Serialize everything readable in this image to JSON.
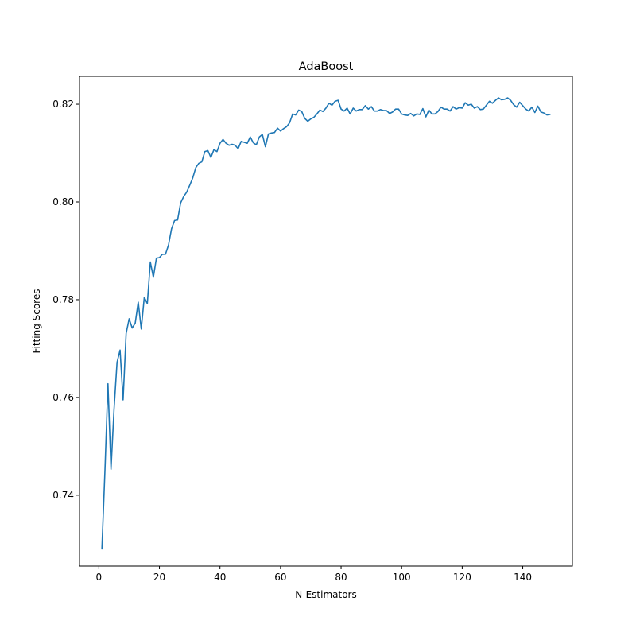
{
  "chart_data": {
    "type": "line",
    "title": "AdaBoost",
    "xlabel": "N-Estimators",
    "ylabel": "Fitting Scores",
    "xlim": [
      -6.4,
      156.4
    ],
    "ylim": [
      0.7255,
      0.8257
    ],
    "xticks": [
      0,
      20,
      40,
      60,
      80,
      100,
      120,
      140
    ],
    "xtick_labels": [
      "0",
      "20",
      "40",
      "60",
      "80",
      "100",
      "120",
      "140"
    ],
    "yticks": [
      0.74,
      0.76,
      0.78,
      0.8,
      0.82
    ],
    "ytick_labels": [
      "0.74",
      "0.76",
      "0.78",
      "0.80",
      "0.82"
    ],
    "grid": false,
    "legend": "none",
    "series": [
      {
        "color": "#1f77b4",
        "x": [
          1,
          2,
          3,
          4,
          5,
          6,
          7,
          8,
          9,
          10,
          11,
          12,
          13,
          14,
          15,
          16,
          17,
          18,
          19,
          20,
          21,
          22,
          23,
          24,
          25,
          26,
          27,
          28,
          29,
          30,
          31,
          32,
          33,
          34,
          35,
          36,
          37,
          38,
          39,
          40,
          41,
          42,
          43,
          44,
          45,
          46,
          47,
          48,
          49,
          50,
          51,
          52,
          53,
          54,
          55,
          56,
          57,
          58,
          59,
          60,
          61,
          62,
          63,
          64,
          65,
          66,
          67,
          68,
          69,
          70,
          71,
          72,
          73,
          74,
          75,
          76,
          77,
          78,
          79,
          80,
          81,
          82,
          83,
          84,
          85,
          86,
          87,
          88,
          89,
          90,
          91,
          92,
          93,
          94,
          95,
          96,
          97,
          98,
          99,
          100,
          101,
          102,
          103,
          104,
          105,
          106,
          107,
          108,
          109,
          110,
          111,
          112,
          113,
          114,
          115,
          116,
          117,
          118,
          119,
          120,
          121,
          122,
          123,
          124,
          125,
          126,
          127,
          128,
          129,
          130,
          131,
          132,
          133,
          134,
          135,
          136,
          137,
          138,
          139,
          140,
          141,
          142,
          143,
          144,
          145,
          146,
          147,
          148,
          149
        ],
        "y": [
          0.729,
          0.745,
          0.7628,
          0.7453,
          0.7575,
          0.7672,
          0.7697,
          0.7595,
          0.7731,
          0.7761,
          0.7742,
          0.7752,
          0.7795,
          0.774,
          0.7805,
          0.7792,
          0.7877,
          0.7846,
          0.7885,
          0.7886,
          0.7893,
          0.7893,
          0.7912,
          0.7945,
          0.7962,
          0.7963,
          0.7998,
          0.8011,
          0.802,
          0.8034,
          0.8049,
          0.807,
          0.8079,
          0.8082,
          0.8103,
          0.8105,
          0.8091,
          0.8107,
          0.8103,
          0.812,
          0.8128,
          0.812,
          0.8116,
          0.8118,
          0.8116,
          0.8109,
          0.8124,
          0.8122,
          0.812,
          0.8133,
          0.8121,
          0.8117,
          0.8133,
          0.8138,
          0.8113,
          0.8139,
          0.8141,
          0.8142,
          0.8151,
          0.8145,
          0.815,
          0.8154,
          0.8162,
          0.818,
          0.8178,
          0.8188,
          0.8185,
          0.8171,
          0.8165,
          0.817,
          0.8173,
          0.818,
          0.8188,
          0.8185,
          0.8192,
          0.8202,
          0.8198,
          0.8206,
          0.8208,
          0.819,
          0.8186,
          0.8192,
          0.818,
          0.8192,
          0.8186,
          0.8189,
          0.8189,
          0.8197,
          0.819,
          0.8195,
          0.8186,
          0.8186,
          0.8189,
          0.8187,
          0.8187,
          0.8181,
          0.8184,
          0.819,
          0.819,
          0.818,
          0.8178,
          0.8177,
          0.8181,
          0.8176,
          0.818,
          0.8179,
          0.8191,
          0.8174,
          0.8188,
          0.818,
          0.818,
          0.8185,
          0.8194,
          0.819,
          0.819,
          0.8186,
          0.8195,
          0.819,
          0.8193,
          0.8192,
          0.8203,
          0.8198,
          0.82,
          0.8192,
          0.8195,
          0.8189,
          0.819,
          0.8198,
          0.8206,
          0.8202,
          0.8208,
          0.8213,
          0.8209,
          0.821,
          0.8213,
          0.8208,
          0.8199,
          0.8194,
          0.8204,
          0.8197,
          0.819,
          0.8186,
          0.8194,
          0.8183,
          0.8196,
          0.8184,
          0.8182,
          0.8178,
          0.8179
        ]
      }
    ]
  }
}
